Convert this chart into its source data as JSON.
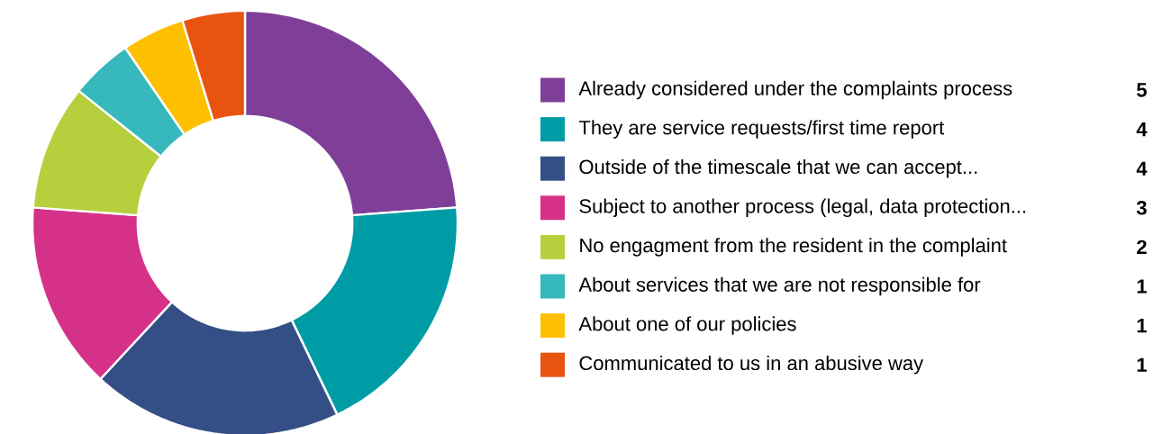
{
  "chart_data": {
    "type": "donut",
    "categories": [
      "Already considered under the complaints process",
      "They are service requests/first time report",
      "Outside of the timescale that we can accept...",
      "Subject to another process (legal, data protection...",
      "No engagment from the resident in the complaint",
      "About services that we are not responsible for",
      "About one of our policies",
      "Communicated to us in an abusive way"
    ],
    "values": [
      5,
      4,
      4,
      3,
      2,
      1,
      1,
      1
    ],
    "colors": [
      "#7f3f98",
      "#009ca6",
      "#344f85",
      "#d63189",
      "#b5d03c",
      "#36b8bc",
      "#fcc000",
      "#e8540f"
    ],
    "legend": "right",
    "data_labels": true
  }
}
